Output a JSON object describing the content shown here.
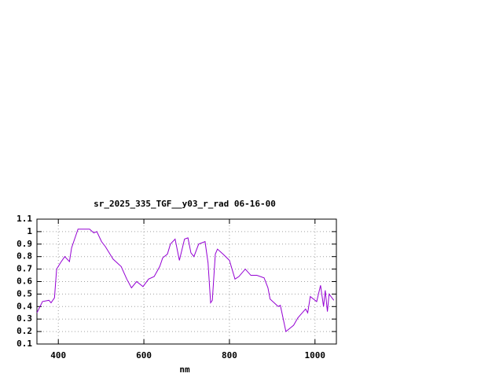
{
  "chart_data": {
    "type": "line",
    "title": "sr_2025_335_TGF__y03_r_rad 06-16-00",
    "x_label": "nm",
    "x": [
      350,
      363,
      378,
      383,
      391,
      396,
      405,
      415,
      426,
      431,
      446,
      473,
      483,
      490,
      501,
      510,
      528,
      547,
      560,
      571,
      583,
      598,
      611,
      624,
      637,
      644,
      655,
      662,
      673,
      683,
      695,
      703,
      710,
      717,
      728,
      743,
      750,
      756,
      760,
      767,
      772,
      785,
      800,
      813,
      822,
      837,
      850,
      864,
      881,
      890,
      895,
      914,
      919,
      932,
      950,
      960,
      978,
      983,
      989,
      1004,
      1013,
      1020,
      1024,
      1029,
      1033,
      1044
    ],
    "values": [
      0.35,
      0.44,
      0.45,
      0.43,
      0.47,
      0.7,
      0.75,
      0.8,
      0.76,
      0.87,
      1.02,
      1.02,
      0.99,
      1.0,
      0.92,
      0.88,
      0.78,
      0.72,
      0.62,
      0.55,
      0.6,
      0.56,
      0.62,
      0.64,
      0.72,
      0.79,
      0.82,
      0.9,
      0.94,
      0.77,
      0.94,
      0.95,
      0.83,
      0.8,
      0.9,
      0.92,
      0.75,
      0.43,
      0.45,
      0.82,
      0.86,
      0.82,
      0.77,
      0.62,
      0.64,
      0.7,
      0.65,
      0.65,
      0.63,
      0.55,
      0.46,
      0.4,
      0.41,
      0.2,
      0.25,
      0.31,
      0.38,
      0.35,
      0.48,
      0.44,
      0.57,
      0.4,
      0.53,
      0.36,
      0.5,
      0.45
    ],
    "color": "#9400d3",
    "xlim": [
      350,
      1050
    ],
    "xticks": [
      400,
      600,
      800,
      1000
    ],
    "ylim": [
      0.1,
      1.1
    ],
    "yticks": [
      0.1,
      0.2,
      0.3,
      0.4,
      0.5,
      0.6,
      0.7,
      0.8,
      0.9,
      1,
      1.1
    ],
    "grid": true
  }
}
